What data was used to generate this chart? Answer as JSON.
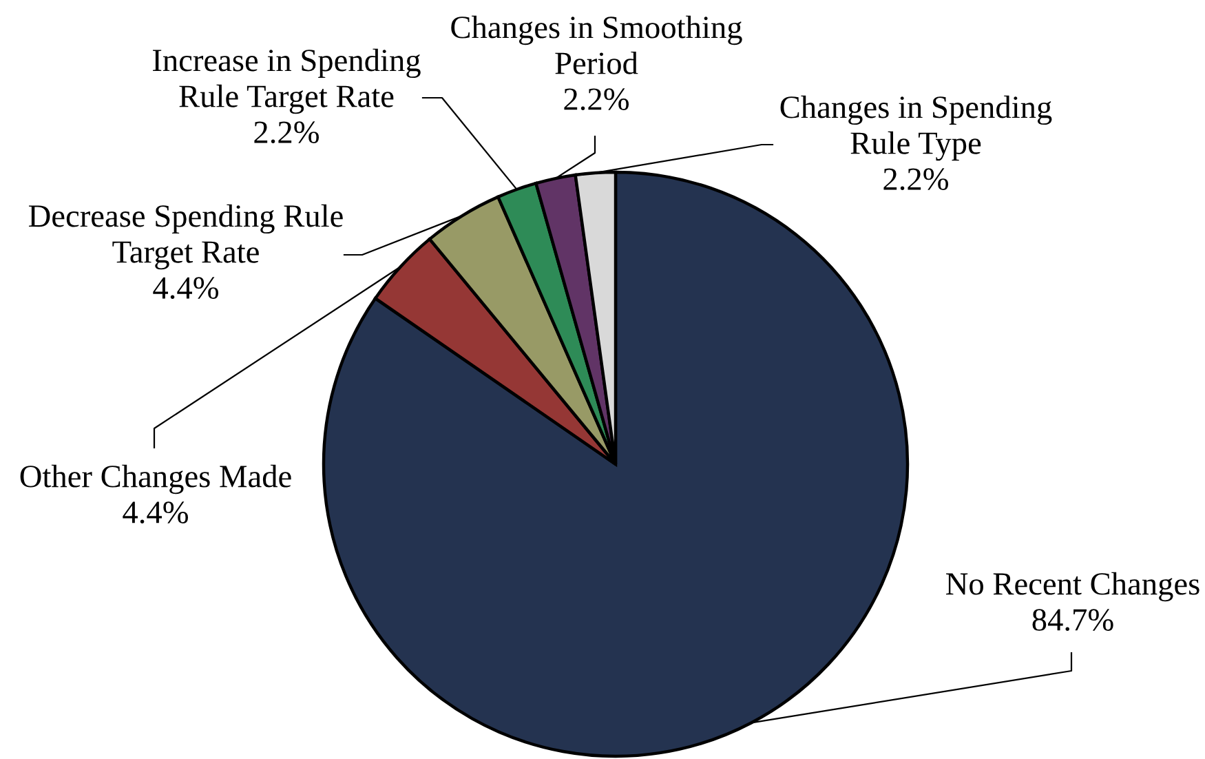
{
  "chart_data": {
    "type": "pie",
    "categories": [
      "No Recent Changes",
      "Other Changes Made",
      "Decrease Spending Rule\nTarget Rate",
      "Increase in Spending\nRule Target Rate",
      "Changes in Smoothing\nPeriod",
      "Changes in Spending\nRule Type"
    ],
    "values": [
      84.7,
      4.4,
      4.4,
      2.2,
      2.2,
      2.2
    ],
    "value_labels": [
      "84.7%",
      "4.4%",
      "4.4%",
      "2.2%",
      "2.2%",
      "2.2%"
    ],
    "colors": [
      "#243350",
      "#953735",
      "#989a66",
      "#2e8b57",
      "#613466",
      "#d9d9d9"
    ]
  }
}
